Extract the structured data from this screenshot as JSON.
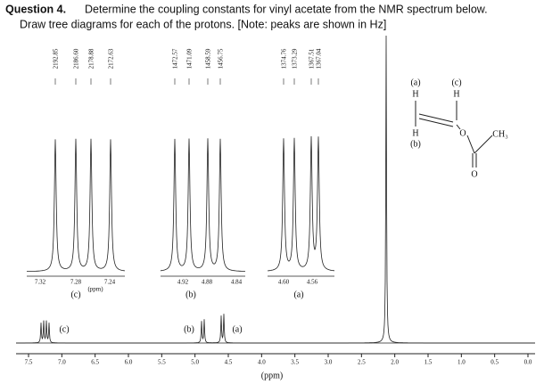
{
  "question": {
    "label": "Question 4.",
    "text": "Determine the coupling constants for vinyl acetate from the NMR spectrum below.",
    "text2": "Draw tree diagrams for each of the protons. [Note: peaks are shown in Hz]"
  },
  "insets": [
    {
      "peaks": [
        "2192.85",
        "2186.60",
        "2178.88",
        "2172.63"
      ],
      "ticks": [
        "7.32",
        "7.28",
        "7.24"
      ],
      "unit": "(ppm)",
      "label": "(c)"
    },
    {
      "peaks": [
        "1472.57",
        "1471.09",
        "1458.59",
        "1456.75"
      ],
      "ticks": [
        "4.92",
        "4.88",
        "4.84"
      ],
      "label": "(b)"
    },
    {
      "peaks": [
        "1374.76",
        "1373.29",
        "1367.51",
        "1367.04"
      ],
      "ticks": [
        "4.60",
        "4.56"
      ],
      "label": "(a)"
    }
  ],
  "spectrum": {
    "peak_labels": [
      "(c)",
      "(b)",
      "(a)"
    ],
    "axis_ticks": [
      "7.5",
      "7.0",
      "6.5",
      "6.0",
      "5.5",
      "5.0",
      "4.5",
      "4.0",
      "3.5",
      "3.0",
      "2.5",
      "2.0",
      "1.5",
      "1.0",
      "0.5",
      "0.0"
    ],
    "axis_label": "(ppm)"
  },
  "structure": {
    "labels": [
      "(a)",
      "(c)",
      "H",
      "H",
      "H",
      "(b)",
      "O",
      "CH₃",
      "O"
    ]
  }
}
